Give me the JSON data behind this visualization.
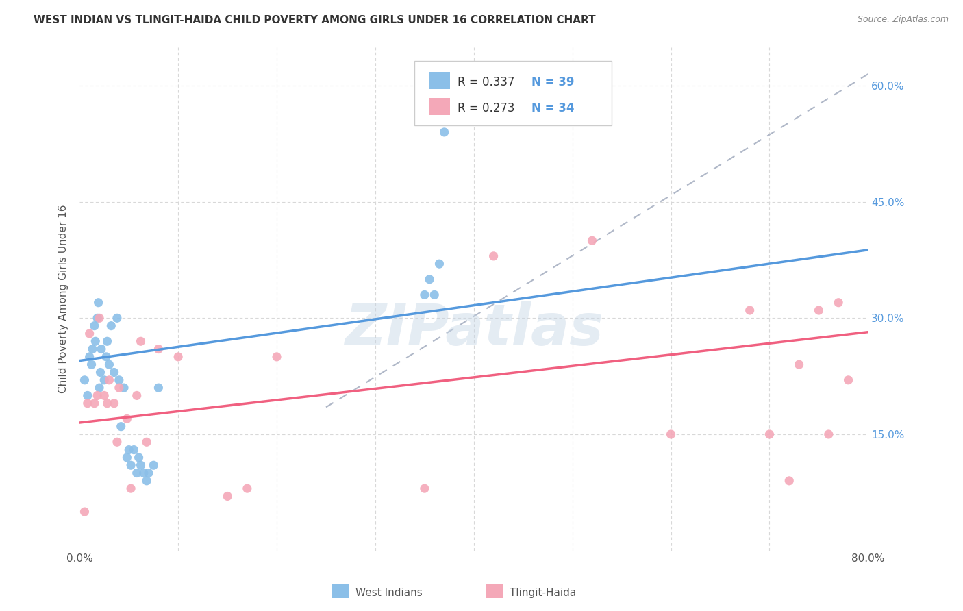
{
  "title": "WEST INDIAN VS TLINGIT-HAIDA CHILD POVERTY AMONG GIRLS UNDER 16 CORRELATION CHART",
  "source": "Source: ZipAtlas.com",
  "ylabel": "Child Poverty Among Girls Under 16",
  "xlim": [
    0.0,
    0.8
  ],
  "ylim": [
    0.0,
    0.65
  ],
  "xticks": [
    0.0,
    0.1,
    0.2,
    0.3,
    0.4,
    0.5,
    0.6,
    0.7,
    0.8
  ],
  "xticklabels": [
    "0.0%",
    "",
    "",
    "",
    "",
    "",
    "",
    "",
    "80.0%"
  ],
  "yticks": [
    0.0,
    0.15,
    0.3,
    0.45,
    0.6
  ],
  "right_yticklabels": [
    "",
    "15.0%",
    "30.0%",
    "45.0%",
    "60.0%"
  ],
  "background_color": "#ffffff",
  "grid_color": "#d8d8d8",
  "watermark": "ZIPatlas",
  "west_indians_color": "#8bbfe8",
  "tlingit_haida_color": "#f4a8b8",
  "west_indians_line_color": "#5599dd",
  "tlingit_haida_line_color": "#f06080",
  "dashed_line_color": "#b0b8c8",
  "legend_R1": "R = 0.337",
  "legend_N1": "N = 39",
  "legend_R2": "R = 0.273",
  "legend_N2": "N = 34",
  "west_indians_x": [
    0.005,
    0.008,
    0.01,
    0.012,
    0.013,
    0.015,
    0.016,
    0.018,
    0.019,
    0.02,
    0.021,
    0.022,
    0.025,
    0.027,
    0.028,
    0.03,
    0.032,
    0.035,
    0.038,
    0.04,
    0.042,
    0.045,
    0.048,
    0.05,
    0.052,
    0.055,
    0.058,
    0.06,
    0.062,
    0.065,
    0.068,
    0.07,
    0.075,
    0.08,
    0.35,
    0.355,
    0.36,
    0.365,
    0.37
  ],
  "west_indians_y": [
    0.22,
    0.2,
    0.25,
    0.24,
    0.26,
    0.29,
    0.27,
    0.3,
    0.32,
    0.21,
    0.23,
    0.26,
    0.22,
    0.25,
    0.27,
    0.24,
    0.29,
    0.23,
    0.3,
    0.22,
    0.16,
    0.21,
    0.12,
    0.13,
    0.11,
    0.13,
    0.1,
    0.12,
    0.11,
    0.1,
    0.09,
    0.1,
    0.11,
    0.21,
    0.33,
    0.35,
    0.33,
    0.37,
    0.54
  ],
  "tlingit_haida_x": [
    0.005,
    0.008,
    0.01,
    0.015,
    0.018,
    0.02,
    0.025,
    0.028,
    0.03,
    0.035,
    0.038,
    0.04,
    0.048,
    0.052,
    0.058,
    0.062,
    0.068,
    0.08,
    0.1,
    0.15,
    0.17,
    0.2,
    0.35,
    0.42,
    0.52,
    0.6,
    0.68,
    0.7,
    0.72,
    0.73,
    0.75,
    0.76,
    0.77,
    0.78
  ],
  "tlingit_haida_y": [
    0.05,
    0.19,
    0.28,
    0.19,
    0.2,
    0.3,
    0.2,
    0.19,
    0.22,
    0.19,
    0.14,
    0.21,
    0.17,
    0.08,
    0.2,
    0.27,
    0.14,
    0.26,
    0.25,
    0.07,
    0.08,
    0.25,
    0.08,
    0.38,
    0.4,
    0.15,
    0.31,
    0.15,
    0.09,
    0.24,
    0.31,
    0.15,
    0.32,
    0.22
  ],
  "wi_line_x": [
    0.0,
    0.8
  ],
  "wi_line_y": [
    0.245,
    0.388
  ],
  "th_line_x": [
    0.0,
    0.8
  ],
  "th_line_y": [
    0.165,
    0.282
  ],
  "dash_line_x": [
    0.25,
    0.8
  ],
  "dash_line_y": [
    0.185,
    0.615
  ]
}
